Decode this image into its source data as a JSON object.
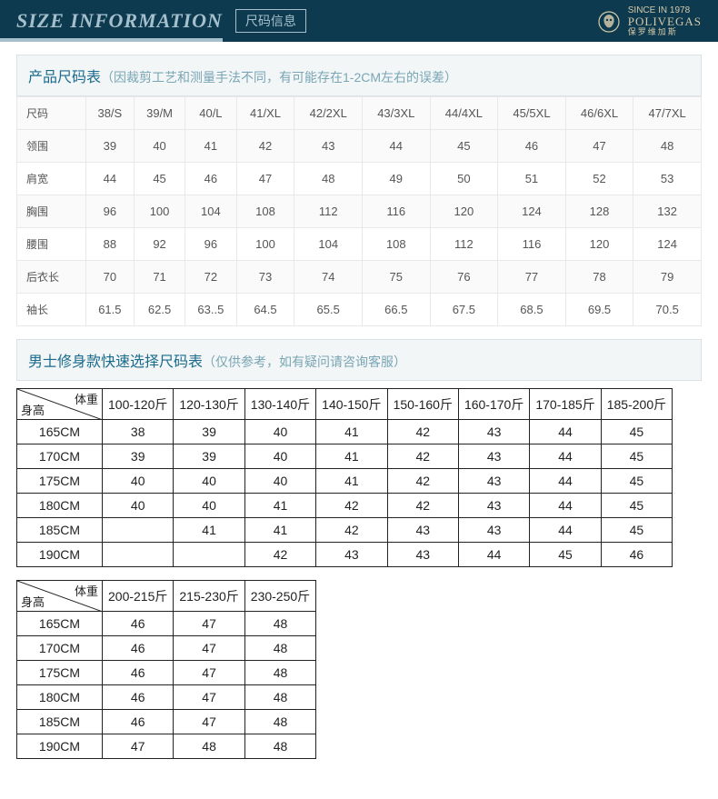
{
  "header": {
    "title_en": "SIZE INFORMATION",
    "title_cn": "尺码信息",
    "brand_top": "SINCE IN 1978",
    "brand_name": "POLIVEGAS",
    "brand_sub": "保罗维加斯"
  },
  "section1": {
    "title": "产品尺码表",
    "note": "（因裁剪工艺和测量手法不同，有可能存在1-2CM左右的误差）",
    "columns": [
      "尺码",
      "38/S",
      "39/M",
      "40/L",
      "41/XL",
      "42/2XL",
      "43/3XL",
      "44/4XL",
      "45/5XL",
      "46/6XL",
      "47/7XL"
    ],
    "rows": [
      [
        "领围",
        "39",
        "40",
        "41",
        "42",
        "43",
        "44",
        "45",
        "46",
        "47",
        "48"
      ],
      [
        "肩宽",
        "44",
        "45",
        "46",
        "47",
        "48",
        "49",
        "50",
        "51",
        "52",
        "53"
      ],
      [
        "胸围",
        "96",
        "100",
        "104",
        "108",
        "112",
        "116",
        "120",
        "124",
        "128",
        "132"
      ],
      [
        "腰围",
        "88",
        "92",
        "96",
        "100",
        "104",
        "108",
        "112",
        "116",
        "120",
        "124"
      ],
      [
        "后衣长",
        "70",
        "71",
        "72",
        "73",
        "74",
        "75",
        "76",
        "77",
        "78",
        "79"
      ],
      [
        "袖长",
        "61.5",
        "62.5",
        "63..5",
        "64.5",
        "65.5",
        "66.5",
        "67.5",
        "68.5",
        "69.5",
        "70.5"
      ]
    ]
  },
  "section2": {
    "title": "男士修身款快速选择尺码表",
    "note": "（仅供参考，如有疑问请咨询客服）",
    "diag_top": "体重",
    "diag_left": "身高",
    "weight_cols1": [
      "100-120斤",
      "120-130斤",
      "130-140斤",
      "140-150斤",
      "150-160斤",
      "160-170斤",
      "170-185斤",
      "185-200斤"
    ],
    "heights": [
      "165CM",
      "170CM",
      "175CM",
      "180CM",
      "185CM",
      "190CM"
    ],
    "grid1": [
      [
        "38",
        "39",
        "40",
        "41",
        "42",
        "43",
        "44",
        "45"
      ],
      [
        "39",
        "39",
        "40",
        "41",
        "42",
        "43",
        "44",
        "45"
      ],
      [
        "40",
        "40",
        "40",
        "41",
        "42",
        "43",
        "44",
        "45"
      ],
      [
        "40",
        "40",
        "41",
        "42",
        "42",
        "43",
        "44",
        "45"
      ],
      [
        "",
        "41",
        "41",
        "42",
        "43",
        "43",
        "44",
        "45"
      ],
      [
        "",
        "",
        "42",
        "43",
        "43",
        "44",
        "45",
        "46"
      ]
    ],
    "weight_cols2": [
      "200-215斤",
      "215-230斤",
      "230-250斤"
    ],
    "grid2": [
      [
        "46",
        "47",
        "48"
      ],
      [
        "46",
        "47",
        "48"
      ],
      [
        "46",
        "47",
        "48"
      ],
      [
        "46",
        "47",
        "48"
      ],
      [
        "46",
        "47",
        "48"
      ],
      [
        "47",
        "48",
        "48"
      ]
    ]
  },
  "colors": {
    "header_bg": "#0d3a4f",
    "header_fg": "#a5c0cc",
    "brand_fg": "#d4c9a8",
    "section_bg": "#f2f6f7",
    "section_border": "#d9e3e6",
    "section_title": "#1a6b8c",
    "section_note": "#7aa5b5",
    "t1_border": "#e8e8e8",
    "t2_border": "#222222"
  }
}
